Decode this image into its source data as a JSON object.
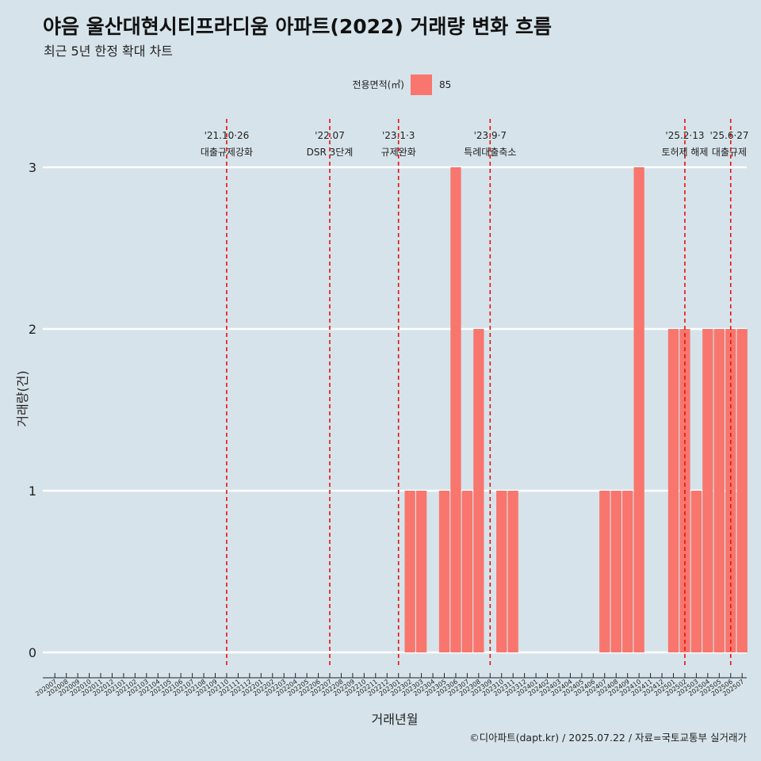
{
  "title": "야음 울산대현시티프라디움 아파트(2022) 거래량 변화 흐름",
  "subtitle": "최근 5년 한정 확대 차트",
  "caption": "©디아파트(dapt.kr) / 2025.07.22 / 자료=국토교통부 실거래가",
  "legend": {
    "title": "전용면적(㎡)",
    "item": "85",
    "color": "#f8766d"
  },
  "colors": {
    "background": "#d6e3ea",
    "bar": "#f8766d",
    "event_line": "#e8100e",
    "grid": "#ffffff"
  },
  "chart_data": {
    "type": "bar",
    "xlabel": "거래년월",
    "ylabel": "거래량(건)",
    "ylim": [
      0,
      3
    ],
    "yticks": [
      0,
      1,
      2,
      3
    ],
    "grid": true,
    "legend_position": "top",
    "categories": [
      "202007",
      "202008",
      "202009",
      "202010",
      "202011",
      "202012",
      "202101",
      "202102",
      "202103",
      "202104",
      "202105",
      "202106",
      "202107",
      "202108",
      "202109",
      "202110",
      "202111",
      "202112",
      "202201",
      "202202",
      "202203",
      "202204",
      "202205",
      "202206",
      "202207",
      "202208",
      "202209",
      "202210",
      "202211",
      "202212",
      "202301",
      "202302",
      "202303",
      "202304",
      "202305",
      "202306",
      "202307",
      "202308",
      "202309",
      "202310",
      "202311",
      "202312",
      "202401",
      "202402",
      "202403",
      "202404",
      "202405",
      "202406",
      "202407",
      "202408",
      "202409",
      "202410",
      "202411",
      "202412",
      "202501",
      "202502",
      "202503",
      "202504",
      "202505",
      "202506",
      "202507"
    ],
    "series": [
      {
        "name": "85",
        "values": [
          0,
          0,
          0,
          0,
          0,
          0,
          0,
          0,
          0,
          0,
          0,
          0,
          0,
          0,
          0,
          0,
          0,
          0,
          0,
          0,
          0,
          0,
          0,
          0,
          0,
          0,
          0,
          0,
          0,
          0,
          0,
          1,
          1,
          0,
          1,
          3,
          1,
          2,
          0,
          1,
          1,
          0,
          0,
          0,
          0,
          0,
          0,
          0,
          1,
          1,
          1,
          3,
          0,
          0,
          2,
          2,
          1,
          2,
          2,
          2,
          2
        ]
      }
    ],
    "events": [
      {
        "date": "'21.10·26",
        "label": "대출규제강화",
        "x": "202110"
      },
      {
        "date": "'22.07",
        "label": "DSR 3단계",
        "x": "202207"
      },
      {
        "date": "'23.1·3",
        "label": "규제완화",
        "x": "202301"
      },
      {
        "date": "'23.9·7",
        "label": "특례대출축소",
        "x": "202309"
      },
      {
        "date": "'25.2·13",
        "label": "토허제 해제",
        "x": "202502"
      },
      {
        "date": "'25.6·27",
        "label": "대출규제",
        "x": "202506"
      }
    ]
  }
}
